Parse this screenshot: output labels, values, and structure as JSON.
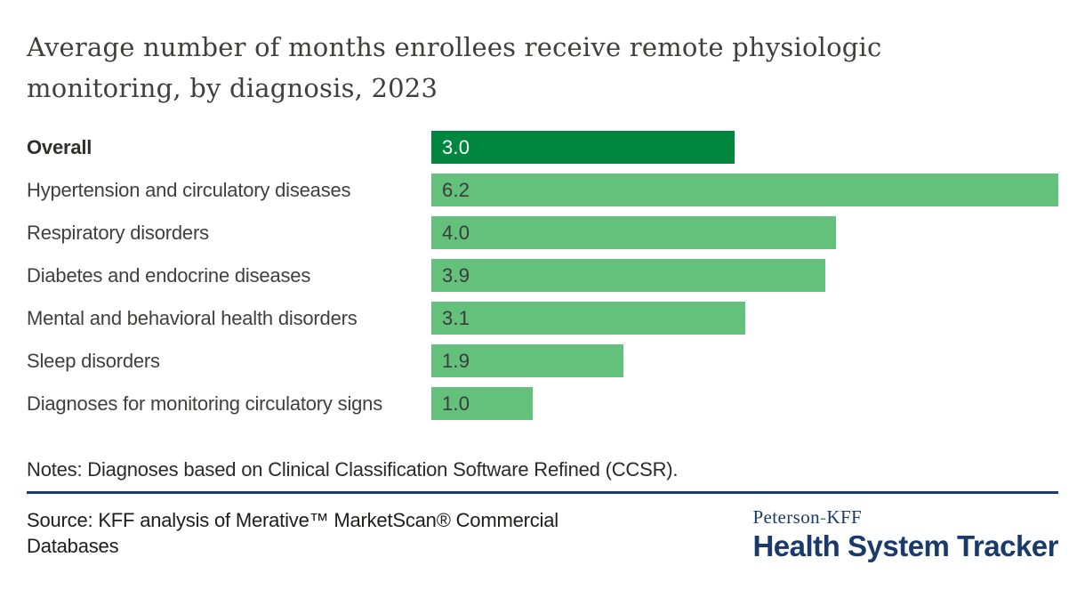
{
  "title": "Average number of months enrollees receive remote physiologic monitoring, by diagnosis, 2023",
  "chart_data": {
    "type": "bar",
    "orientation": "horizontal",
    "title": "Average number of months enrollees receive remote physiologic monitoring, by diagnosis, 2023",
    "categories": [
      "Overall",
      "Hypertension and circulatory diseases",
      "Respiratory disorders",
      "Diabetes and endocrine diseases",
      "Mental and behavioral health disorders",
      "Sleep disorders",
      "Diagnoses for monitoring circulatory signs"
    ],
    "values": [
      3.0,
      6.2,
      4.0,
      3.9,
      3.1,
      1.9,
      1.0
    ],
    "value_labels": [
      "3.0",
      "6.2",
      "4.0",
      "3.9",
      "3.1",
      "1.9",
      "1.0"
    ],
    "xlabel": "",
    "ylabel": "",
    "xlim": [
      0,
      6.2
    ],
    "grid": false,
    "legend": false,
    "highlight_index": 0,
    "colors": {
      "highlight_bar": "#00873f",
      "bar": "#63c17c",
      "highlight_value_text": "#ffffff",
      "value_text": "#3b3b3b"
    }
  },
  "notes": "Notes: Diagnoses based on Clinical Classification Software Refined (CCSR).",
  "source": "Source: KFF analysis of Merative™ MarketScan® Commercial Databases",
  "logo": {
    "brand_prefix": "Peterson",
    "brand_hyphen": "-",
    "brand_suffix": "KFF",
    "brand_name": "Health System Tracker",
    "color_navy": "#1b3a6c",
    "color_green": "#3fa148"
  }
}
